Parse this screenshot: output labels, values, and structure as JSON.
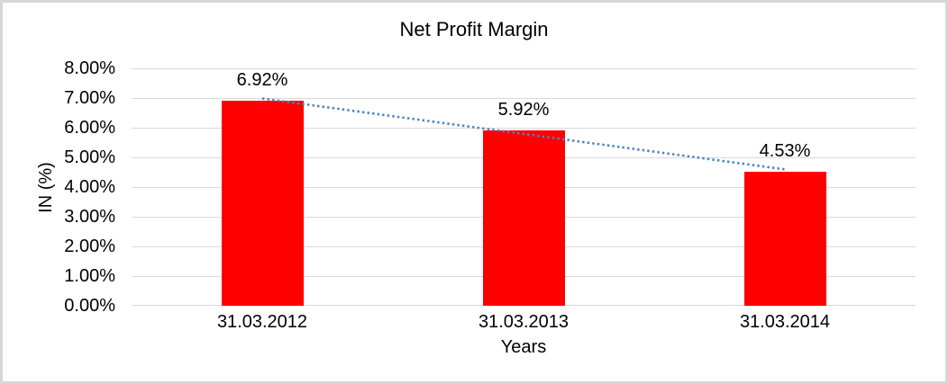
{
  "frame": {
    "background": "#ffffff",
    "border_color": "#d6d6d6"
  },
  "chart_data": {
    "type": "bar",
    "title": "Net Profit Margin",
    "xlabel": "Years",
    "ylabel": "IN (%)",
    "categories": [
      "31.03.2012",
      "31.03.2013",
      "31.03.2014"
    ],
    "values": [
      6.92,
      5.92,
      4.53
    ],
    "value_labels": [
      "6.92%",
      "5.92%",
      "4.53%"
    ],
    "ylim": [
      0,
      8
    ],
    "ytick_step": 1,
    "ytick_labels": [
      "0.00%",
      "1.00%",
      "2.00%",
      "3.00%",
      "4.00%",
      "5.00%",
      "6.00%",
      "7.00%",
      "8.00%"
    ],
    "grid": true,
    "legend": "none",
    "bar_color": "#ff0000",
    "gridline_color": "#d9d9d9",
    "trendline": {
      "type": "linear",
      "style": "dotted",
      "color": "#4a84c4"
    }
  }
}
